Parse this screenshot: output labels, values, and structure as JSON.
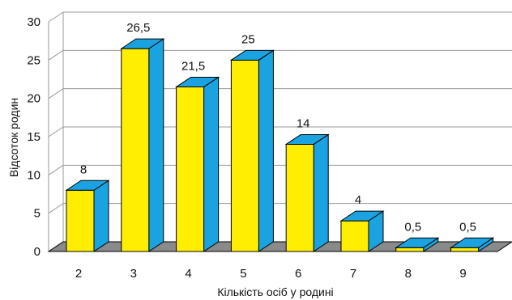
{
  "chart_data": {
    "type": "bar",
    "title": "",
    "xlabel": "Кількість осіб у родині",
    "ylabel": "Відсоток родин",
    "categories": [
      "2",
      "3",
      "4",
      "5",
      "6",
      "7",
      "8",
      "9"
    ],
    "values": [
      8,
      26.5,
      21.5,
      25,
      14,
      4,
      0.5,
      0.5
    ],
    "value_labels": [
      "8",
      "26,5",
      "21,5",
      "25",
      "14",
      "4",
      "0,5",
      "0,5"
    ],
    "ylim": [
      0,
      30
    ],
    "yticks": [
      "0",
      "5",
      "10",
      "15",
      "20",
      "25",
      "30"
    ],
    "grid": true,
    "style": "3d-bar",
    "colors": {
      "bar_front": "#ffee00",
      "bar_side": "#1aa3e0",
      "bar_top": "#1aa3e0",
      "floor": "#8a8a8a",
      "gridline": "#9a9a9a",
      "outline": "#000000"
    }
  }
}
